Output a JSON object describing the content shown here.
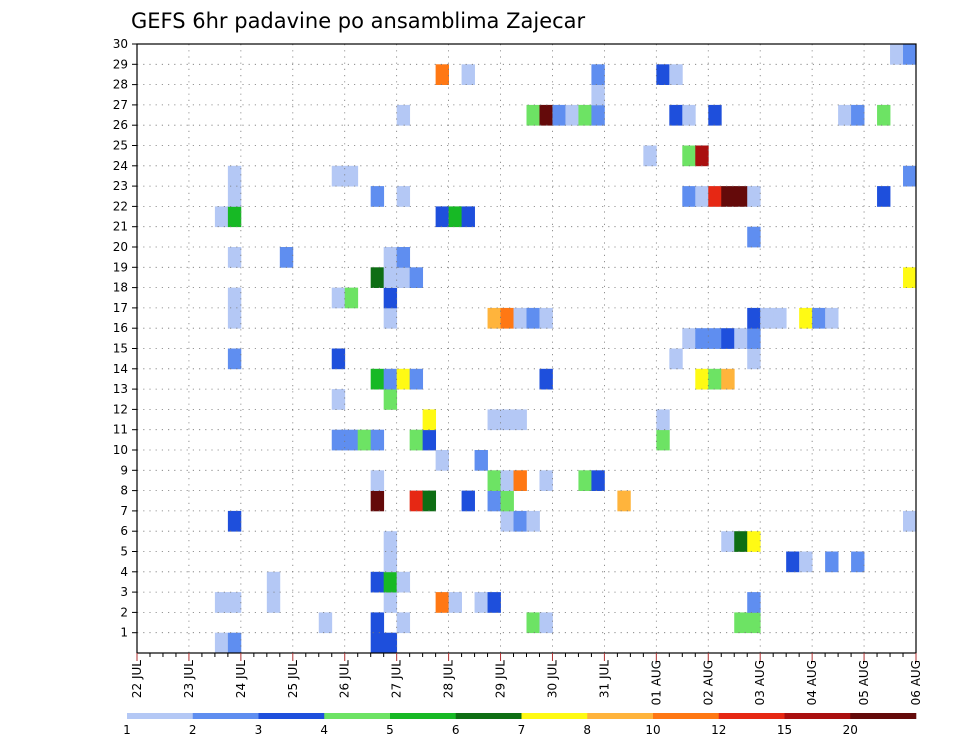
{
  "chart_data": {
    "type": "heatmap",
    "title": "GEFS 6hr padavine po ansamblima Zajecar",
    "x_tick_labels": [
      "22 JUL",
      "23 JUL",
      "24 JUL",
      "25 JUL",
      "26 JUL",
      "27 JUL",
      "28 JUL",
      "29 JUL",
      "30 JUL",
      "31 JUL",
      "01 AUG",
      "02 AUG",
      "03 AUG",
      "04 AUG",
      "05 AUG",
      "06 AUG"
    ],
    "y_tick_labels": [
      "1",
      "2",
      "3",
      "4",
      "5",
      "6",
      "7",
      "8",
      "9",
      "10",
      "11",
      "12",
      "13",
      "14",
      "15",
      "16",
      "17",
      "18",
      "19",
      "20",
      "21",
      "22",
      "23",
      "24",
      "25",
      "26",
      "27",
      "28",
      "29",
      "30"
    ],
    "xlim_days": [
      0,
      15
    ],
    "ylim_members": [
      0,
      30
    ],
    "x_step_days": 0.25,
    "grid": true,
    "legend": "bottom",
    "colorbar": {
      "colors": [
        "#b4c8f5",
        "#5f8ef0",
        "#1e4fdc",
        "#6de364",
        "#17b925",
        "#0e6e14",
        "#fffa14",
        "#ffb43c",
        "#ff7814",
        "#e62814",
        "#aa0f0f",
        "#640a0a"
      ],
      "labels": [
        "1",
        "2",
        "3",
        "4",
        "5",
        "6",
        "7",
        "8",
        "10",
        "12",
        "15",
        "20"
      ]
    },
    "cells": [
      {
        "day": 1.5,
        "member": 0,
        "c": 1
      },
      {
        "day": 1.75,
        "member": 0,
        "c": 2
      },
      {
        "day": 4.5,
        "member": 0,
        "c": 3
      },
      {
        "day": 4.75,
        "member": 0,
        "c": 3
      },
      {
        "day": 4.5,
        "member": 1,
        "c": 3
      },
      {
        "day": 5.0,
        "member": 1,
        "c": 1
      },
      {
        "day": 7.5,
        "member": 1,
        "c": 4
      },
      {
        "day": 7.75,
        "member": 1,
        "c": 1
      },
      {
        "day": 11.5,
        "member": 1,
        "c": 4
      },
      {
        "day": 11.75,
        "member": 1,
        "c": 4
      },
      {
        "day": 3.5,
        "member": 1,
        "c": 1
      },
      {
        "day": 1.5,
        "member": 2,
        "c": 1
      },
      {
        "day": 1.75,
        "member": 2,
        "c": 1
      },
      {
        "day": 2.5,
        "member": 2,
        "c": 1
      },
      {
        "day": 4.75,
        "member": 2,
        "c": 1
      },
      {
        "day": 5.75,
        "member": 2,
        "c": 9
      },
      {
        "day": 6.0,
        "member": 2,
        "c": 1
      },
      {
        "day": 6.5,
        "member": 2,
        "c": 1
      },
      {
        "day": 6.75,
        "member": 2,
        "c": 3
      },
      {
        "day": 11.75,
        "member": 2,
        "c": 2
      },
      {
        "day": 2.5,
        "member": 3,
        "c": 1
      },
      {
        "day": 4.5,
        "member": 3,
        "c": 3
      },
      {
        "day": 4.75,
        "member": 3,
        "c": 5
      },
      {
        "day": 5.0,
        "member": 3,
        "c": 1
      },
      {
        "day": 4.75,
        "member": 4,
        "c": 1
      },
      {
        "day": 12.5,
        "member": 4,
        "c": 3
      },
      {
        "day": 12.75,
        "member": 4,
        "c": 1
      },
      {
        "day": 13.25,
        "member": 4,
        "c": 2
      },
      {
        "day": 13.75,
        "member": 4,
        "c": 2
      },
      {
        "day": 4.75,
        "member": 5,
        "c": 1
      },
      {
        "day": 11.25,
        "member": 5,
        "c": 1
      },
      {
        "day": 11.5,
        "member": 5,
        "c": 6
      },
      {
        "day": 11.75,
        "member": 5,
        "c": 7
      },
      {
        "day": 1.75,
        "member": 6,
        "c": 3
      },
      {
        "day": 7.0,
        "member": 6,
        "c": 1
      },
      {
        "day": 7.25,
        "member": 6,
        "c": 2
      },
      {
        "day": 7.5,
        "member": 6,
        "c": 1
      },
      {
        "day": 14.75,
        "member": 6,
        "c": 1
      },
      {
        "day": 4.5,
        "member": 7,
        "c": 12
      },
      {
        "day": 5.25,
        "member": 7,
        "c": 10
      },
      {
        "day": 5.5,
        "member": 7,
        "c": 6
      },
      {
        "day": 6.25,
        "member": 7,
        "c": 3
      },
      {
        "day": 6.75,
        "member": 7,
        "c": 2
      },
      {
        "day": 7.0,
        "member": 7,
        "c": 4
      },
      {
        "day": 9.25,
        "member": 7,
        "c": 8
      },
      {
        "day": 4.5,
        "member": 8,
        "c": 1
      },
      {
        "day": 6.75,
        "member": 8,
        "c": 4
      },
      {
        "day": 7.0,
        "member": 8,
        "c": 1
      },
      {
        "day": 7.25,
        "member": 8,
        "c": 9
      },
      {
        "day": 7.75,
        "member": 8,
        "c": 1
      },
      {
        "day": 8.5,
        "member": 8,
        "c": 4
      },
      {
        "day": 8.75,
        "member": 8,
        "c": 3
      },
      {
        "day": 5.75,
        "member": 9,
        "c": 1
      },
      {
        "day": 6.5,
        "member": 9,
        "c": 2
      },
      {
        "day": 3.75,
        "member": 10,
        "c": 2
      },
      {
        "day": 4.0,
        "member": 10,
        "c": 2
      },
      {
        "day": 4.25,
        "member": 10,
        "c": 4
      },
      {
        "day": 4.5,
        "member": 10,
        "c": 2
      },
      {
        "day": 5.25,
        "member": 10,
        "c": 4
      },
      {
        "day": 5.5,
        "member": 10,
        "c": 3
      },
      {
        "day": 10.0,
        "member": 10,
        "c": 4
      },
      {
        "day": 5.5,
        "member": 11,
        "c": 7
      },
      {
        "day": 6.75,
        "member": 11,
        "c": 1
      },
      {
        "day": 7.0,
        "member": 11,
        "c": 1
      },
      {
        "day": 7.25,
        "member": 11,
        "c": 1
      },
      {
        "day": 10.0,
        "member": 11,
        "c": 1
      },
      {
        "day": 3.75,
        "member": 12,
        "c": 1
      },
      {
        "day": 4.75,
        "member": 12,
        "c": 4
      },
      {
        "day": 4.5,
        "member": 13,
        "c": 5
      },
      {
        "day": 4.75,
        "member": 13,
        "c": 2
      },
      {
        "day": 5.0,
        "member": 13,
        "c": 7
      },
      {
        "day": 5.25,
        "member": 13,
        "c": 2
      },
      {
        "day": 7.75,
        "member": 13,
        "c": 3
      },
      {
        "day": 10.75,
        "member": 13,
        "c": 7
      },
      {
        "day": 11.0,
        "member": 13,
        "c": 4
      },
      {
        "day": 11.25,
        "member": 13,
        "c": 8
      },
      {
        "day": 1.75,
        "member": 14,
        "c": 2
      },
      {
        "day": 3.75,
        "member": 14,
        "c": 3
      },
      {
        "day": 10.25,
        "member": 14,
        "c": 1
      },
      {
        "day": 11.75,
        "member": 14,
        "c": 1
      },
      {
        "day": 10.5,
        "member": 15,
        "c": 1
      },
      {
        "day": 10.75,
        "member": 15,
        "c": 2
      },
      {
        "day": 11.0,
        "member": 15,
        "c": 2
      },
      {
        "day": 11.25,
        "member": 15,
        "c": 3
      },
      {
        "day": 11.5,
        "member": 15,
        "c": 1
      },
      {
        "day": 11.75,
        "member": 15,
        "c": 2
      },
      {
        "day": 1.75,
        "member": 16,
        "c": 1
      },
      {
        "day": 4.75,
        "member": 16,
        "c": 1
      },
      {
        "day": 6.75,
        "member": 16,
        "c": 8
      },
      {
        "day": 7.0,
        "member": 16,
        "c": 9
      },
      {
        "day": 7.25,
        "member": 16,
        "c": 1
      },
      {
        "day": 7.5,
        "member": 16,
        "c": 2
      },
      {
        "day": 7.75,
        "member": 16,
        "c": 1
      },
      {
        "day": 11.75,
        "member": 16,
        "c": 3
      },
      {
        "day": 12.0,
        "member": 16,
        "c": 1
      },
      {
        "day": 12.25,
        "member": 16,
        "c": 1
      },
      {
        "day": 12.75,
        "member": 16,
        "c": 7
      },
      {
        "day": 13.0,
        "member": 16,
        "c": 2
      },
      {
        "day": 13.25,
        "member": 16,
        "c": 1
      },
      {
        "day": 1.75,
        "member": 17,
        "c": 1
      },
      {
        "day": 3.75,
        "member": 17,
        "c": 1
      },
      {
        "day": 4.0,
        "member": 17,
        "c": 4
      },
      {
        "day": 4.75,
        "member": 17,
        "c": 3
      },
      {
        "day": 4.5,
        "member": 18,
        "c": 6
      },
      {
        "day": 4.75,
        "member": 18,
        "c": 1
      },
      {
        "day": 5.0,
        "member": 18,
        "c": 1
      },
      {
        "day": 5.25,
        "member": 18,
        "c": 2
      },
      {
        "day": 14.75,
        "member": 18,
        "c": 7
      },
      {
        "day": 1.75,
        "member": 19,
        "c": 1
      },
      {
        "day": 2.75,
        "member": 19,
        "c": 2
      },
      {
        "day": 4.75,
        "member": 19,
        "c": 1
      },
      {
        "day": 5.0,
        "member": 19,
        "c": 2
      },
      {
        "day": 11.75,
        "member": 20,
        "c": 2
      },
      {
        "day": 1.5,
        "member": 21,
        "c": 1
      },
      {
        "day": 1.75,
        "member": 21,
        "c": 5
      },
      {
        "day": 5.75,
        "member": 21,
        "c": 3
      },
      {
        "day": 6.0,
        "member": 21,
        "c": 5
      },
      {
        "day": 6.25,
        "member": 21,
        "c": 3
      },
      {
        "day": 1.75,
        "member": 22,
        "c": 1
      },
      {
        "day": 4.5,
        "member": 22,
        "c": 2
      },
      {
        "day": 5.0,
        "member": 22,
        "c": 1
      },
      {
        "day": 10.5,
        "member": 22,
        "c": 2
      },
      {
        "day": 10.75,
        "member": 22,
        "c": 1
      },
      {
        "day": 11.0,
        "member": 22,
        "c": 10
      },
      {
        "day": 11.25,
        "member": 22,
        "c": 12
      },
      {
        "day": 11.5,
        "member": 22,
        "c": 12
      },
      {
        "day": 11.75,
        "member": 22,
        "c": 1
      },
      {
        "day": 14.25,
        "member": 22,
        "c": 3
      },
      {
        "day": 1.75,
        "member": 23,
        "c": 1
      },
      {
        "day": 3.75,
        "member": 23,
        "c": 1
      },
      {
        "day": 4.0,
        "member": 23,
        "c": 1
      },
      {
        "day": 14.75,
        "member": 23,
        "c": 2
      },
      {
        "day": 9.75,
        "member": 24,
        "c": 1
      },
      {
        "day": 10.5,
        "member": 24,
        "c": 4
      },
      {
        "day": 10.75,
        "member": 24,
        "c": 11
      },
      {
        "day": 5.0,
        "member": 26,
        "c": 1
      },
      {
        "day": 7.5,
        "member": 26,
        "c": 4
      },
      {
        "day": 7.75,
        "member": 26,
        "c": 12
      },
      {
        "day": 8.0,
        "member": 26,
        "c": 2
      },
      {
        "day": 8.25,
        "member": 26,
        "c": 1
      },
      {
        "day": 8.5,
        "member": 26,
        "c": 4
      },
      {
        "day": 8.75,
        "member": 26,
        "c": 2
      },
      {
        "day": 10.25,
        "member": 26,
        "c": 3
      },
      {
        "day": 10.5,
        "member": 26,
        "c": 1
      },
      {
        "day": 11.0,
        "member": 26,
        "c": 3
      },
      {
        "day": 13.5,
        "member": 26,
        "c": 1
      },
      {
        "day": 13.75,
        "member": 26,
        "c": 2
      },
      {
        "day": 14.25,
        "member": 26,
        "c": 4
      },
      {
        "day": 8.75,
        "member": 27,
        "c": 1
      },
      {
        "day": 5.75,
        "member": 28,
        "c": 9
      },
      {
        "day": 6.25,
        "member": 28,
        "c": 1
      },
      {
        "day": 8.75,
        "member": 28,
        "c": 2
      },
      {
        "day": 10.0,
        "member": 28,
        "c": 3
      },
      {
        "day": 10.25,
        "member": 28,
        "c": 1
      },
      {
        "day": 14.5,
        "member": 29,
        "c": 1
      },
      {
        "day": 14.75,
        "member": 29,
        "c": 2
      }
    ]
  }
}
